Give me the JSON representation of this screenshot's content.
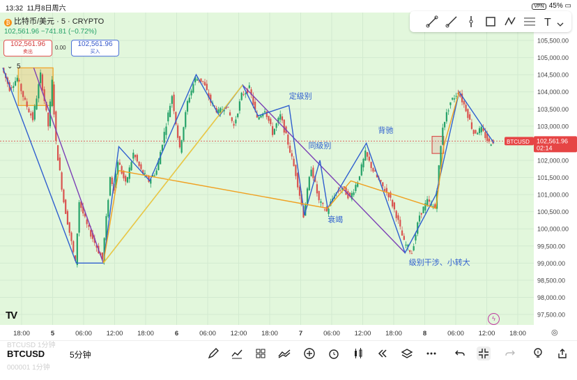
{
  "status_bar": {
    "time": "13:32",
    "date": "11月8日周六",
    "vpn": "VPN",
    "battery": "45%"
  },
  "symbol": {
    "title": "比特币/美元 · 5 · CRYPTO",
    "coin_glyph": "₿",
    "price_change": "102,561.96  −741.81 (−0.72%)"
  },
  "quote": {
    "sell_price": "102,561.96",
    "sell_label": "卖出",
    "spread": "0.00",
    "buy_price": "102,561.96",
    "buy_label": "买入"
  },
  "interval_toggle": "5",
  "price_badge": {
    "symbol": "BTCUSD",
    "price": "102,561.96",
    "countdown": "02:14"
  },
  "annotations": {
    "a1": "定级别",
    "a2": "同级别",
    "a3": "背驰",
    "a4": "衰竭",
    "a5": "级别干涉、小转大"
  },
  "bottom_bar": {
    "symbol": "BTCUSD",
    "interval": "5分钟",
    "ghost_top": "BTCUSD      1分钟",
    "ghost_bottom": "000001      1分钟"
  },
  "colors": {
    "background": "#e2f7dc",
    "up": "#26a269",
    "down": "#d9534f",
    "purple_line": "#7b3fb5",
    "blue_line": "#2f5fcf",
    "orange_line": "#f0a020",
    "yellow_line": "#f2d235"
  },
  "chart_data": {
    "type": "line",
    "symbol": "BTCUSD",
    "interval": "5",
    "last_price": 102561.96,
    "ylim": [
      97500,
      105500
    ],
    "y_ticks": [
      "105,500.00",
      "105,000.00",
      "104,500.00",
      "104,000.00",
      "103,500.00",
      "103,000.00",
      "102,500.00",
      "102,000.00",
      "101,500.00",
      "101,000.00",
      "100,500.00",
      "100,000.00",
      "99,500.00",
      "99,000.00",
      "98,500.00",
      "98,000.00",
      "97,500.00"
    ],
    "x_ticks": [
      "18:00",
      "5",
      "06:00",
      "12:00",
      "18:00",
      "6",
      "06:00",
      "12:00",
      "18:00",
      "7",
      "06:00",
      "12:00",
      "18:00",
      "8",
      "06:00",
      "12:00",
      "18:00"
    ],
    "x_tick_bold": [
      "5",
      "6",
      "7",
      "8"
    ],
    "price_path": [
      [
        0,
        104700
      ],
      [
        2,
        104100
      ],
      [
        4,
        104400
      ],
      [
        6,
        103700
      ],
      [
        8,
        103200
      ],
      [
        10,
        104500
      ],
      [
        12,
        103000
      ],
      [
        13,
        104300
      ],
      [
        14,
        102500
      ],
      [
        16,
        100800
      ],
      [
        17,
        100200
      ],
      [
        19,
        99000
      ],
      [
        20,
        100800
      ],
      [
        22,
        100100
      ],
      [
        24,
        99600
      ],
      [
        26,
        99100
      ],
      [
        28,
        101500
      ],
      [
        29,
        101200
      ],
      [
        30,
        102000
      ],
      [
        32,
        101300
      ],
      [
        34,
        102200
      ],
      [
        36,
        101700
      ],
      [
        38,
        101400
      ],
      [
        40,
        101700
      ],
      [
        42,
        102800
      ],
      [
        44,
        103900
      ],
      [
        46,
        102300
      ],
      [
        48,
        103700
      ],
      [
        50,
        104400
      ],
      [
        52,
        104300
      ],
      [
        54,
        103700
      ],
      [
        56,
        103400
      ],
      [
        58,
        103600
      ],
      [
        60,
        103000
      ],
      [
        62,
        103900
      ],
      [
        64,
        104100
      ],
      [
        66,
        103200
      ],
      [
        68,
        103500
      ],
      [
        70,
        102800
      ],
      [
        72,
        103300
      ],
      [
        74,
        102500
      ],
      [
        76,
        101600
      ],
      [
        78,
        100400
      ],
      [
        80,
        101800
      ],
      [
        82,
        100800
      ],
      [
        84,
        100500
      ],
      [
        86,
        101000
      ],
      [
        88,
        101200
      ],
      [
        90,
        100900
      ],
      [
        92,
        101400
      ],
      [
        94,
        102200
      ],
      [
        96,
        101700
      ],
      [
        98,
        101300
      ],
      [
        100,
        101000
      ],
      [
        102,
        100400
      ],
      [
        104,
        99600
      ],
      [
        106,
        99300
      ],
      [
        108,
        100400
      ],
      [
        110,
        100800
      ],
      [
        112,
        100600
      ],
      [
        114,
        103000
      ],
      [
        116,
        103700
      ],
      [
        118,
        104000
      ],
      [
        120,
        103500
      ],
      [
        122,
        102800
      ],
      [
        124,
        102900
      ],
      [
        126,
        102500
      ],
      [
        127,
        102562
      ]
    ],
    "boxes": [
      {
        "from": [
          4,
          104700
        ],
        "to": [
          13,
          103600
        ],
        "color": "orange"
      },
      {
        "from": [
          111,
          102700
        ],
        "to": [
          114,
          102200
        ],
        "color": "red"
      }
    ],
    "series": [
      {
        "color": "purple",
        "values": [
          [
            8,
            104700
          ],
          [
            26,
            99000
          ],
          [
            62,
            104200
          ],
          [
            104,
            99300
          ]
        ]
      },
      {
        "color": "blue",
        "values": [
          [
            0,
            104700
          ],
          [
            19,
            99000
          ],
          [
            26,
            99000
          ],
          [
            30,
            102400
          ],
          [
            38,
            101400
          ],
          [
            50,
            104500
          ],
          [
            56,
            103300
          ],
          [
            62,
            104200
          ],
          [
            66,
            103300
          ],
          [
            74,
            103600
          ],
          [
            78,
            100400
          ],
          [
            82,
            102000
          ],
          [
            84,
            100600
          ],
          [
            94,
            102500
          ],
          [
            104,
            99300
          ],
          [
            112,
            101000
          ],
          [
            118,
            104000
          ],
          [
            127,
            102500
          ]
        ]
      },
      {
        "color": "orange",
        "values": [
          [
            26,
            99000
          ],
          [
            30,
            101700
          ],
          [
            84,
            100600
          ],
          [
            90,
            101400
          ],
          [
            112,
            100600
          ],
          [
            114,
            102400
          ],
          [
            118,
            104000
          ]
        ]
      },
      {
        "color": "yellow",
        "values": [
          [
            26,
            99000
          ],
          [
            62,
            104200
          ]
        ]
      }
    ]
  }
}
